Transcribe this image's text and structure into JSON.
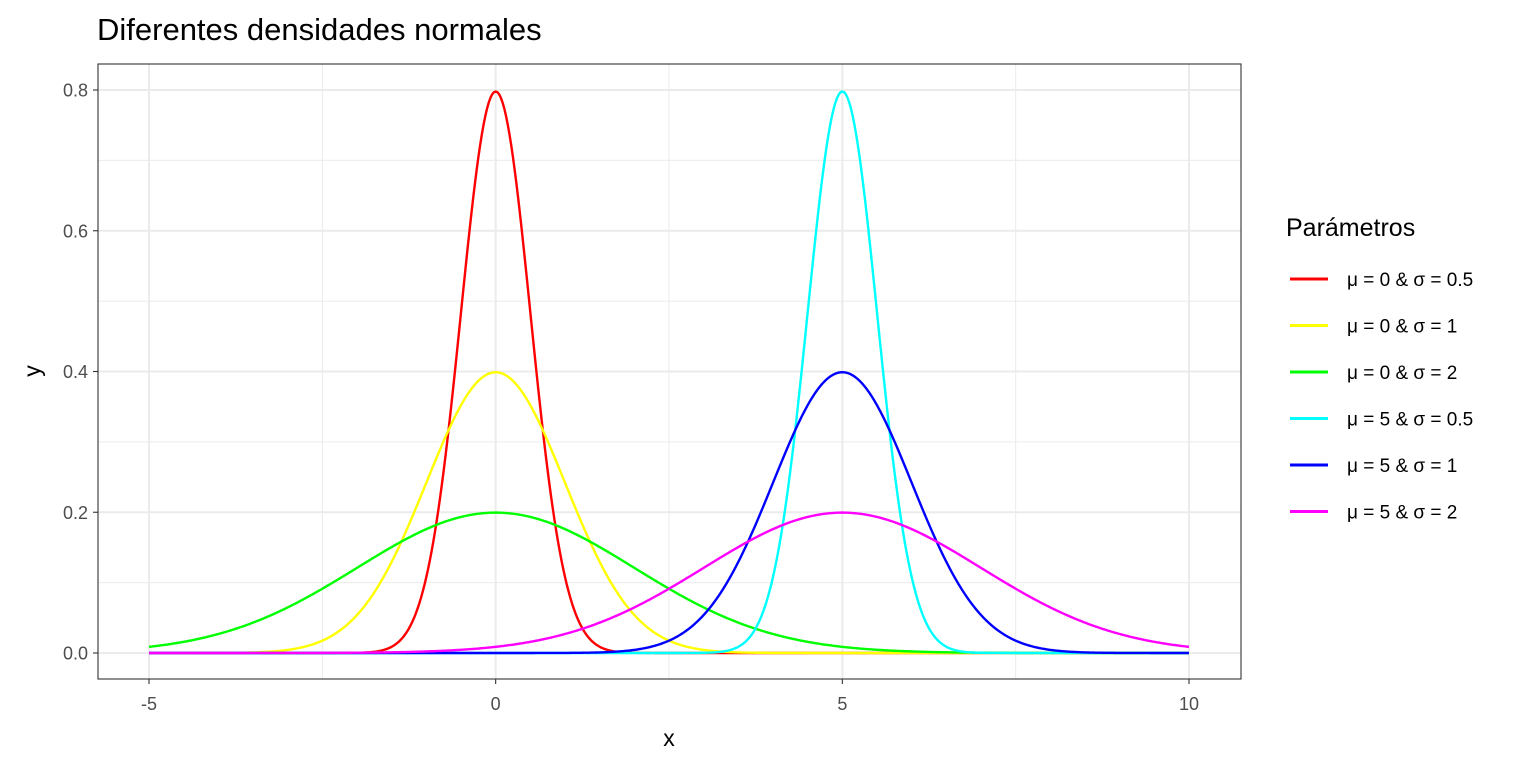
{
  "chart_data": {
    "type": "line",
    "title": "Diferentes densidades normales",
    "xlabel": "x",
    "ylabel": "y",
    "xlim": [
      -5,
      10
    ],
    "ylim": [
      0,
      0.8
    ],
    "x_ticks": [
      -5,
      0,
      5,
      10
    ],
    "x_tick_labels": [
      "-5",
      "0",
      "5",
      "10"
    ],
    "y_ticks": [
      0,
      0.2,
      0.4,
      0.6,
      0.8
    ],
    "y_tick_labels": [
      "0.0",
      "0.2",
      "0.4",
      "0.6",
      "0.8"
    ],
    "grid": true,
    "legend": {
      "title": "Parámetros",
      "placement": "right"
    },
    "curve_function": "normal density: y = exp(-(x-mu)^2/(2*sigma^2)) / (sigma*sqrt(2*pi)), x from -5 to 10",
    "series": [
      {
        "name": "μ = 0 & σ = 0.5",
        "mu": 0,
        "sigma": 0.5,
        "color": "#ff0000",
        "peak": 0.798
      },
      {
        "name": "μ = 0 & σ = 1",
        "mu": 0,
        "sigma": 1,
        "color": "#ffff00",
        "peak": 0.399
      },
      {
        "name": "μ = 0 & σ = 2",
        "mu": 0,
        "sigma": 2,
        "color": "#00ff00",
        "peak": 0.199
      },
      {
        "name": "μ = 5 & σ = 0.5",
        "mu": 5,
        "sigma": 0.5,
        "color": "#00ffff",
        "peak": 0.798
      },
      {
        "name": "μ = 5 & σ = 1",
        "mu": 5,
        "sigma": 1,
        "color": "#0000ff",
        "peak": 0.399
      },
      {
        "name": "μ = 5 & σ = 2",
        "mu": 5,
        "sigma": 2,
        "color": "#ff00ff",
        "peak": 0.199
      }
    ]
  }
}
